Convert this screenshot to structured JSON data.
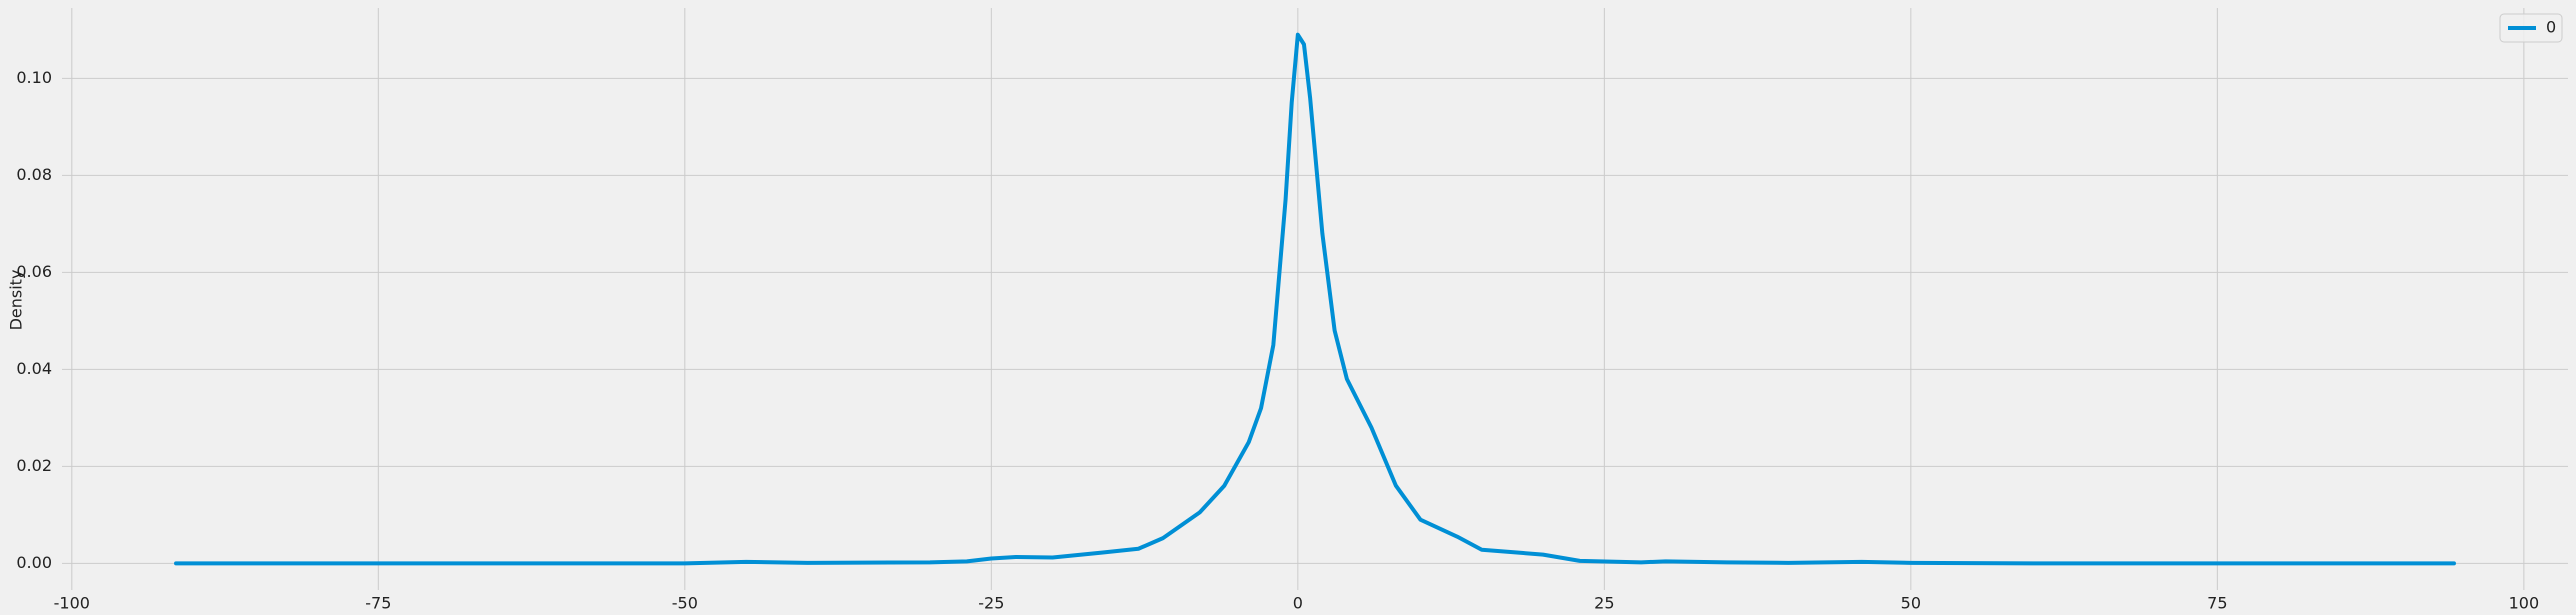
{
  "chart_data": {
    "type": "line",
    "ylabel": "Density",
    "x": [
      -91.5,
      -50,
      -45,
      -40,
      -30,
      -27,
      -25,
      -23,
      -20,
      -16,
      -13,
      -11,
      -8,
      -6,
      -4,
      -3,
      -2,
      -1,
      -0.5,
      0,
      0.5,
      1,
      2,
      3,
      4,
      6,
      8,
      10,
      13,
      15,
      18,
      20,
      23,
      28,
      30,
      35,
      40,
      46,
      50,
      60,
      94.3
    ],
    "series": [
      {
        "name": "0",
        "color": "#008fd5",
        "values": [
          0,
          0,
          0.0003,
          0.0001,
          0.0002,
          0.0004,
          0.001,
          0.0013,
          0.0012,
          0.0022,
          0.003,
          0.0052,
          0.0105,
          0.016,
          0.025,
          0.032,
          0.045,
          0.075,
          0.095,
          0.109,
          0.107,
          0.096,
          0.068,
          0.048,
          0.038,
          0.028,
          0.016,
          0.009,
          0.0055,
          0.0028,
          0.0022,
          0.0018,
          0.0005,
          0.0002,
          0.0004,
          0.0002,
          0.0001,
          0.0003,
          0.0001,
          0,
          0
        ]
      }
    ],
    "xlim": [
      -100.8,
      103.6
    ],
    "ylim": [
      -0.0055,
      0.1145
    ],
    "xticks": [
      -100,
      -75,
      -50,
      -25,
      0,
      25,
      50,
      75,
      100
    ],
    "yticks": [
      {
        "value": 0,
        "label": "0.00"
      },
      {
        "value": 0.02,
        "label": "0.02"
      },
      {
        "value": 0.04,
        "label": "0.04"
      },
      {
        "value": 0.06,
        "label": "0.06"
      },
      {
        "value": 0.08,
        "label": "0.08"
      },
      {
        "value": 0.1,
        "label": "0.10"
      }
    ],
    "grid": true,
    "legend": "upper right"
  }
}
